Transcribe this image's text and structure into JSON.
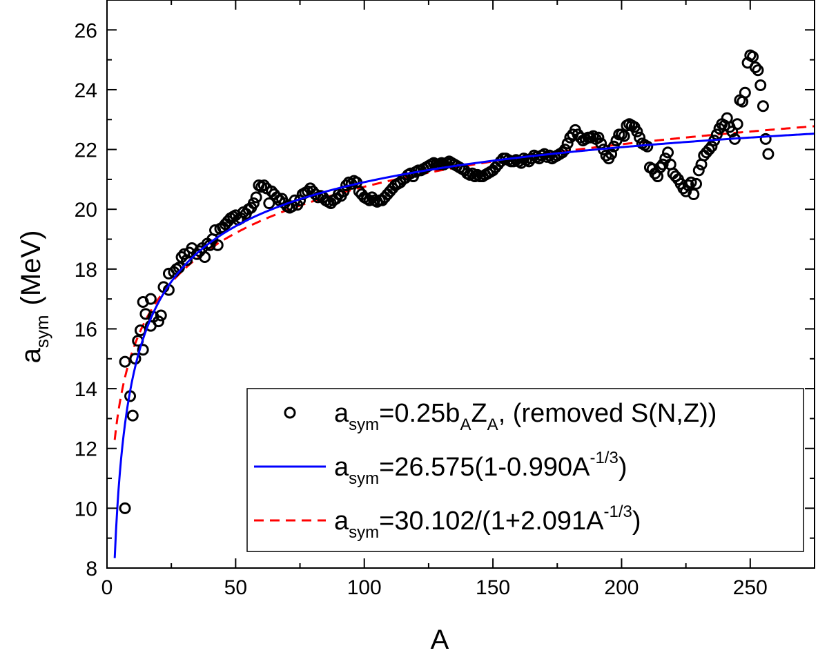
{
  "chart_data": {
    "type": "scatter",
    "xlabel": "A",
    "ylabel": {
      "main": "a",
      "sub": "sym",
      "unit": "(MeV)"
    },
    "xlim": [
      0,
      275
    ],
    "ylim": [
      8,
      27
    ],
    "xticks": [
      "0",
      "50",
      "100",
      "150",
      "200",
      "250"
    ],
    "yticks": [
      "8",
      "10",
      "12",
      "14",
      "16",
      "18",
      "20",
      "22",
      "24",
      "26"
    ],
    "grid": false,
    "legend_position": "bottom-right",
    "legend": [
      {
        "kind": "marker",
        "parts": [
          [
            "a",
            ""
          ],
          [
            "sym",
            "sub"
          ],
          [
            "=0.25b",
            ""
          ],
          [
            "A",
            "sub"
          ],
          [
            "Z",
            ""
          ],
          [
            "A",
            "sub"
          ],
          [
            ", (removed S(N,Z))",
            ""
          ]
        ]
      },
      {
        "kind": "solid",
        "parts": [
          [
            "a",
            ""
          ],
          [
            "sym",
            "sub"
          ],
          [
            "=26.575(1-0.990A",
            ""
          ],
          [
            "-1/3",
            "sup"
          ],
          [
            ")",
            ""
          ]
        ]
      },
      {
        "kind": "dashed",
        "parts": [
          [
            "a",
            ""
          ],
          [
            "sym",
            "sub"
          ],
          [
            "=30.102/(1+2.091A",
            ""
          ],
          [
            "-1/3",
            "sup"
          ],
          [
            ")",
            ""
          ]
        ]
      }
    ],
    "series": [
      {
        "name": "a_sym=0.25b_A Z_A, (removed S(N,Z))",
        "type": "scatter",
        "marker": "open-circle",
        "color": "#000000",
        "points": [
          [
            7,
            10.0
          ],
          [
            7,
            14.9
          ],
          [
            9,
            13.75
          ],
          [
            10,
            13.1
          ],
          [
            11,
            15.0
          ],
          [
            12,
            15.6
          ],
          [
            13,
            15.95
          ],
          [
            14,
            15.3
          ],
          [
            14,
            16.9
          ],
          [
            15,
            16.5
          ],
          [
            17,
            16.1
          ],
          [
            17,
            17.0
          ],
          [
            18,
            16.4
          ],
          [
            20,
            16.25
          ],
          [
            21,
            16.45
          ],
          [
            22,
            17.4
          ],
          [
            24,
            17.3
          ],
          [
            24,
            17.85
          ],
          [
            26,
            17.9
          ],
          [
            27,
            18.0
          ],
          [
            28,
            18.05
          ],
          [
            29,
            18.4
          ],
          [
            30,
            18.5
          ],
          [
            31,
            18.3
          ],
          [
            32,
            18.55
          ],
          [
            33,
            18.7
          ],
          [
            35,
            18.5
          ],
          [
            36,
            18.6
          ],
          [
            37,
            18.7
          ],
          [
            38,
            18.4
          ],
          [
            39,
            18.85
          ],
          [
            40,
            18.8
          ],
          [
            41,
            19.0
          ],
          [
            42,
            19.3
          ],
          [
            43,
            18.8
          ],
          [
            44,
            19.35
          ],
          [
            45,
            19.4
          ],
          [
            46,
            19.5
          ],
          [
            47,
            19.6
          ],
          [
            48,
            19.7
          ],
          [
            49,
            19.75
          ],
          [
            50,
            19.8
          ],
          [
            51,
            19.65
          ],
          [
            52,
            19.7
          ],
          [
            53,
            19.9
          ],
          [
            54,
            19.85
          ],
          [
            55,
            20.0
          ],
          [
            56,
            20.05
          ],
          [
            57,
            20.2
          ],
          [
            58,
            20.4
          ],
          [
            59,
            20.8
          ],
          [
            60,
            20.75
          ],
          [
            61,
            20.8
          ],
          [
            62,
            20.7
          ],
          [
            63,
            20.2
          ],
          [
            64,
            20.6
          ],
          [
            65,
            20.5
          ],
          [
            66,
            20.4
          ],
          [
            67,
            20.3
          ],
          [
            68,
            20.35
          ],
          [
            69,
            20.2
          ],
          [
            70,
            20.1
          ],
          [
            71,
            20.05
          ],
          [
            72,
            20.1
          ],
          [
            73,
            20.3
          ],
          [
            74,
            20.15
          ],
          [
            75,
            20.3
          ],
          [
            76,
            20.5
          ],
          [
            77,
            20.55
          ],
          [
            78,
            20.6
          ],
          [
            79,
            20.7
          ],
          [
            80,
            20.6
          ],
          [
            81,
            20.5
          ],
          [
            82,
            20.4
          ],
          [
            83,
            20.45
          ],
          [
            84,
            20.4
          ],
          [
            85,
            20.3
          ],
          [
            86,
            20.25
          ],
          [
            87,
            20.2
          ],
          [
            88,
            20.3
          ],
          [
            89,
            20.35
          ],
          [
            90,
            20.5
          ],
          [
            91,
            20.45
          ],
          [
            92,
            20.6
          ],
          [
            93,
            20.8
          ],
          [
            94,
            20.9
          ],
          [
            95,
            20.85
          ],
          [
            96,
            20.95
          ],
          [
            97,
            20.9
          ],
          [
            98,
            20.6
          ],
          [
            99,
            20.5
          ],
          [
            100,
            20.4
          ],
          [
            101,
            20.35
          ],
          [
            102,
            20.3
          ],
          [
            103,
            20.4
          ],
          [
            104,
            20.3
          ],
          [
            105,
            20.25
          ],
          [
            106,
            20.3
          ],
          [
            107,
            20.3
          ],
          [
            108,
            20.4
          ],
          [
            109,
            20.5
          ],
          [
            110,
            20.6
          ],
          [
            111,
            20.7
          ],
          [
            112,
            20.8
          ],
          [
            113,
            20.85
          ],
          [
            114,
            20.9
          ],
          [
            115,
            21.0
          ],
          [
            116,
            21.05
          ],
          [
            117,
            21.15
          ],
          [
            118,
            21.2
          ],
          [
            119,
            21.1
          ],
          [
            120,
            21.25
          ],
          [
            121,
            21.3
          ],
          [
            122,
            21.3
          ],
          [
            123,
            21.35
          ],
          [
            124,
            21.4
          ],
          [
            125,
            21.45
          ],
          [
            126,
            21.5
          ],
          [
            127,
            21.55
          ],
          [
            128,
            21.5
          ],
          [
            129,
            21.5
          ],
          [
            130,
            21.55
          ],
          [
            131,
            21.5
          ],
          [
            132,
            21.55
          ],
          [
            133,
            21.6
          ],
          [
            134,
            21.55
          ],
          [
            135,
            21.5
          ],
          [
            136,
            21.45
          ],
          [
            137,
            21.4
          ],
          [
            138,
            21.35
          ],
          [
            139,
            21.3
          ],
          [
            140,
            21.2
          ],
          [
            141,
            21.15
          ],
          [
            142,
            21.2
          ],
          [
            143,
            21.1
          ],
          [
            144,
            21.15
          ],
          [
            145,
            21.1
          ],
          [
            146,
            21.1
          ],
          [
            147,
            21.15
          ],
          [
            148,
            21.2
          ],
          [
            149,
            21.25
          ],
          [
            150,
            21.3
          ],
          [
            151,
            21.4
          ],
          [
            152,
            21.5
          ],
          [
            153,
            21.6
          ],
          [
            154,
            21.7
          ],
          [
            155,
            21.7
          ],
          [
            156,
            21.65
          ],
          [
            157,
            21.6
          ],
          [
            158,
            21.6
          ],
          [
            159,
            21.65
          ],
          [
            160,
            21.6
          ],
          [
            161,
            21.55
          ],
          [
            162,
            21.7
          ],
          [
            163,
            21.65
          ],
          [
            164,
            21.6
          ],
          [
            165,
            21.7
          ],
          [
            166,
            21.8
          ],
          [
            167,
            21.75
          ],
          [
            168,
            21.7
          ],
          [
            169,
            21.8
          ],
          [
            170,
            21.85
          ],
          [
            171,
            21.75
          ],
          [
            172,
            21.8
          ],
          [
            173,
            21.7
          ],
          [
            174,
            21.75
          ],
          [
            175,
            21.8
          ],
          [
            176,
            21.85
          ],
          [
            177,
            21.9
          ],
          [
            178,
            22.0
          ],
          [
            179,
            22.2
          ],
          [
            180,
            22.4
          ],
          [
            181,
            22.5
          ],
          [
            182,
            22.65
          ],
          [
            183,
            22.5
          ],
          [
            184,
            22.4
          ],
          [
            185,
            22.3
          ],
          [
            186,
            22.35
          ],
          [
            187,
            22.4
          ],
          [
            188,
            22.4
          ],
          [
            189,
            22.45
          ],
          [
            190,
            22.35
          ],
          [
            191,
            22.4
          ],
          [
            192,
            22.2
          ],
          [
            193,
            22.0
          ],
          [
            194,
            21.8
          ],
          [
            195,
            21.7
          ],
          [
            196,
            21.85
          ],
          [
            197,
            22.1
          ],
          [
            198,
            22.3
          ],
          [
            199,
            22.5
          ],
          [
            200,
            22.5
          ],
          [
            201,
            22.45
          ],
          [
            202,
            22.8
          ],
          [
            203,
            22.85
          ],
          [
            204,
            22.8
          ],
          [
            205,
            22.75
          ],
          [
            206,
            22.6
          ],
          [
            207,
            22.4
          ],
          [
            208,
            22.2
          ],
          [
            209,
            22.15
          ],
          [
            210,
            22.1
          ],
          [
            211,
            21.4
          ],
          [
            212,
            21.35
          ],
          [
            213,
            21.2
          ],
          [
            214,
            21.1
          ],
          [
            215,
            21.4
          ],
          [
            216,
            21.5
          ],
          [
            217,
            21.7
          ],
          [
            218,
            21.9
          ],
          [
            219,
            21.5
          ],
          [
            220,
            21.2
          ],
          [
            221,
            21.1
          ],
          [
            222,
            21.0
          ],
          [
            223,
            20.85
          ],
          [
            224,
            20.7
          ],
          [
            225,
            20.6
          ],
          [
            226,
            20.8
          ],
          [
            227,
            20.9
          ],
          [
            228,
            20.5
          ],
          [
            229,
            20.85
          ],
          [
            230,
            21.3
          ],
          [
            231,
            21.5
          ],
          [
            232,
            21.8
          ],
          [
            233,
            21.9
          ],
          [
            234,
            22.0
          ],
          [
            235,
            22.1
          ],
          [
            236,
            22.3
          ],
          [
            237,
            22.5
          ],
          [
            238,
            22.7
          ],
          [
            239,
            22.85
          ],
          [
            240,
            22.8
          ],
          [
            241,
            23.05
          ],
          [
            242,
            22.75
          ],
          [
            243,
            22.6
          ],
          [
            244,
            22.35
          ],
          [
            245,
            22.85
          ],
          [
            246,
            23.65
          ],
          [
            247,
            23.6
          ],
          [
            248,
            23.9
          ],
          [
            249,
            24.9
          ],
          [
            250,
            25.15
          ],
          [
            251,
            25.1
          ],
          [
            252,
            24.75
          ],
          [
            253,
            24.65
          ],
          [
            254,
            24.15
          ],
          [
            255,
            23.45
          ],
          [
            256,
            22.35
          ],
          [
            257,
            21.85
          ]
        ]
      },
      {
        "name": "a_sym=26.575(1-0.990A^-1/3)",
        "type": "line",
        "style": "solid",
        "color": "#0000ff",
        "coeffs": [
          26.575,
          0.99
        ],
        "x_range": [
          3,
          275
        ]
      },
      {
        "name": "a_sym=30.102/(1+2.091A^-1/3)",
        "type": "line",
        "style": "dashed",
        "color": "#ff0000",
        "coeffs": [
          30.102,
          2.091
        ],
        "x_range": [
          3,
          275
        ]
      }
    ]
  }
}
